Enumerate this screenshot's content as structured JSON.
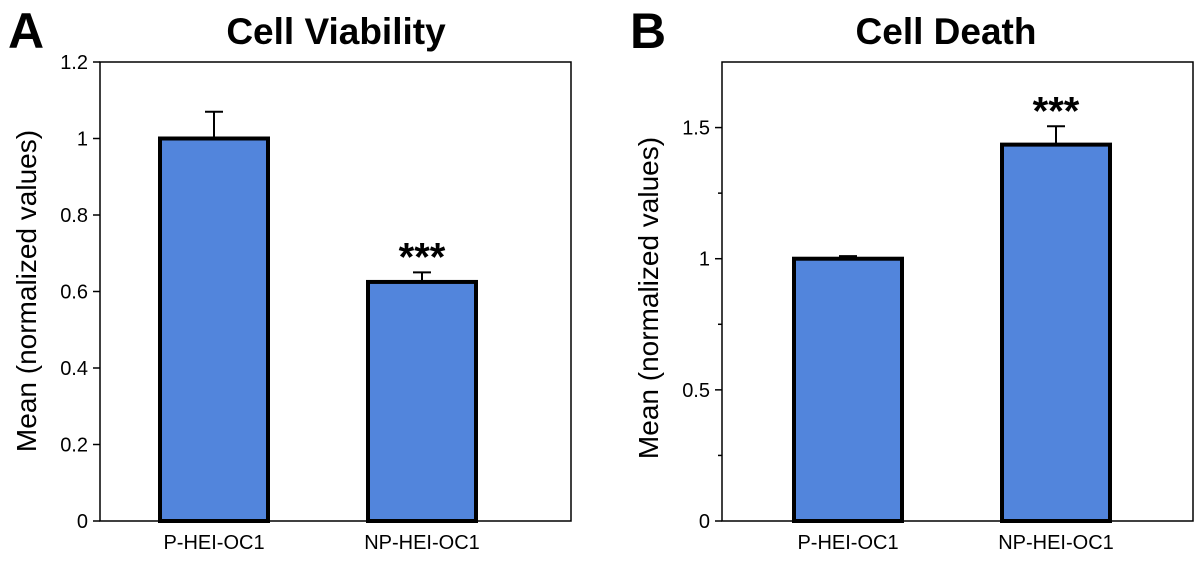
{
  "chart_data": [
    {
      "type": "bar",
      "panel": "A",
      "title": "Cell Viability",
      "categories": [
        "P-HEI-OC1",
        "NP-HEI-OC1"
      ],
      "values": [
        1.0,
        0.625
      ],
      "errors": [
        0.07,
        0.025
      ],
      "significance": [
        "",
        "***"
      ],
      "xlabel": "",
      "ylabel": "Mean (normalized values)",
      "ylim": [
        0,
        1.2
      ],
      "yticks": [
        0,
        0.2,
        0.4,
        0.6,
        0.8,
        1,
        1.2
      ],
      "ytick_labels": [
        "0",
        "0.2",
        "0.4",
        "0.6",
        "0.8",
        "1",
        "1.2"
      ],
      "minor_ticks": false,
      "color": "#5285DC"
    },
    {
      "type": "bar",
      "panel": "B",
      "title": "Cell Death",
      "categories": [
        "P-HEI-OC1",
        "NP-HEI-OC1"
      ],
      "values": [
        1.0,
        1.435
      ],
      "errors": [
        0.01,
        0.07
      ],
      "significance": [
        "",
        "***"
      ],
      "xlabel": "",
      "ylabel": "Mean (normalized values)",
      "ylim": [
        0,
        1.75
      ],
      "yticks": [
        0,
        0.5,
        1,
        1.5
      ],
      "ytick_labels": [
        "0",
        "0.5",
        "1",
        "1.5"
      ],
      "minor_ticks": true,
      "color": "#5285DC"
    }
  ]
}
